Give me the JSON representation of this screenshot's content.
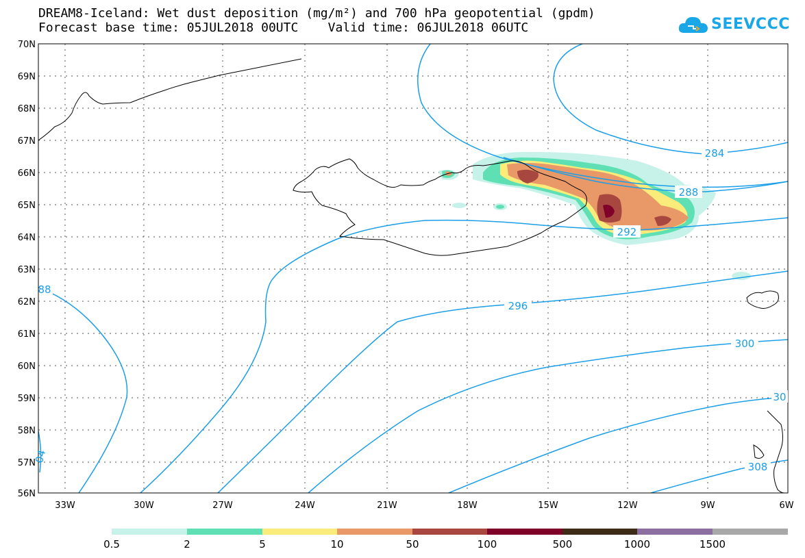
{
  "title_line1": "DREAM8-Iceland: Wet dust deposition (mg/m²) and 700 hPa geopotential (gpdm)",
  "title_line2": "Forecast base time: 05JUL2018 00UTC    Valid time: 06JUL2018 06UTC",
  "logo_text": "SEEVCCC",
  "lat_labels": [
    "70N",
    "69N",
    "68N",
    "67N",
    "66N",
    "65N",
    "64N",
    "63N",
    "62N",
    "61N",
    "60N",
    "59N",
    "58N",
    "57N",
    "56N"
  ],
  "lon_labels": [
    "33W",
    "30W",
    "27W",
    "24W",
    "21W",
    "18W",
    "15W",
    "12W",
    "9W",
    "6W"
  ],
  "contour_labels": [
    "284",
    "288",
    "292",
    "296",
    "300",
    "30",
    "308",
    "88",
    "04"
  ],
  "legend": {
    "labels": [
      "0.5",
      "2",
      "5",
      "10",
      "50",
      "100",
      "500",
      "1000",
      "1500"
    ],
    "colors": [
      "#c6f2ea",
      "#5fe0b4",
      "#f9ec7a",
      "#e99868",
      "#a8473f",
      "#7f0029",
      "#3d2b17",
      "#8c6ea0",
      "#a8a8a8"
    ]
  },
  "colors": {
    "contour": "#1a9ee8",
    "coast": "#000000",
    "grid": "#555555"
  }
}
